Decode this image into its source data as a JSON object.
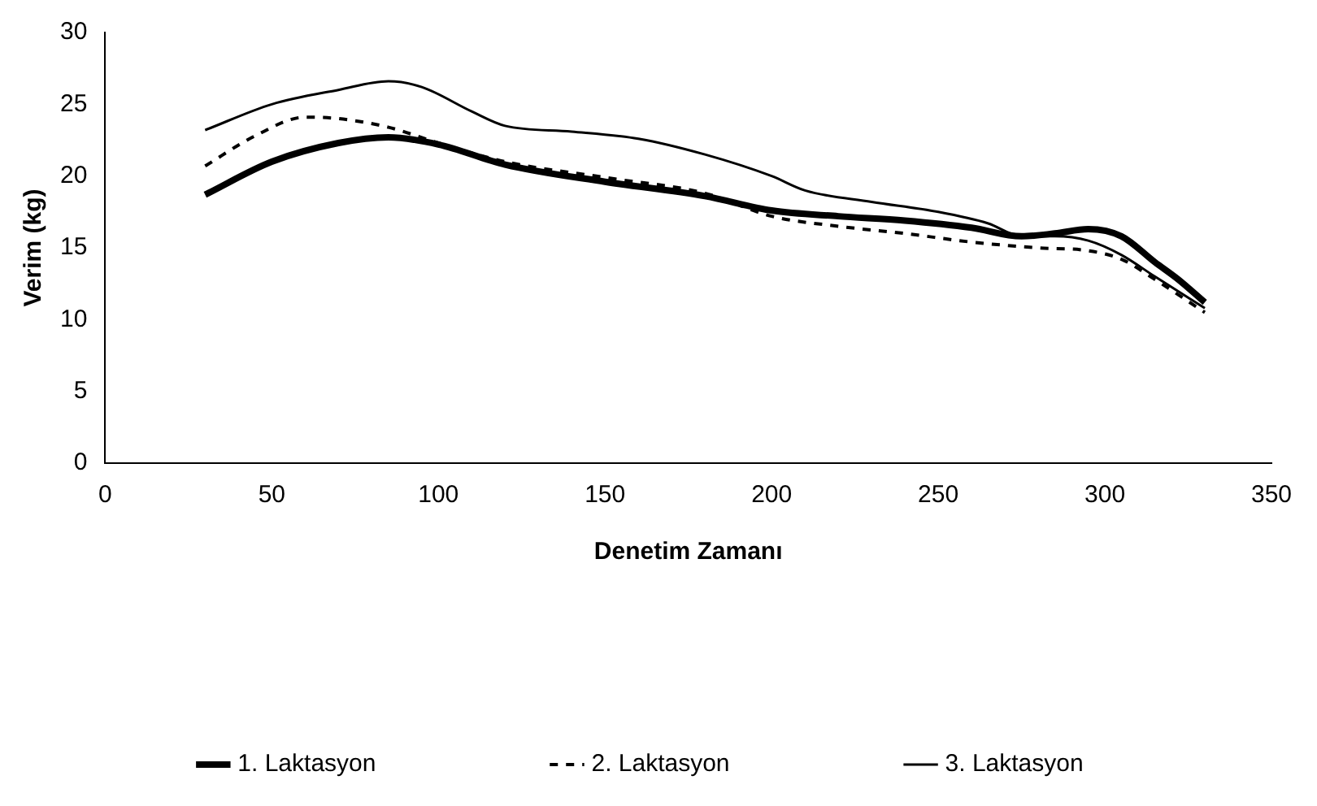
{
  "chart_data": {
    "type": "line",
    "xlabel": "Denetim Zamanı",
    "ylabel": "Verim (kg)",
    "xlim": [
      0,
      350
    ],
    "xticks": [
      0,
      50,
      100,
      150,
      200,
      250,
      300,
      350
    ],
    "ylim": [
      0,
      30
    ],
    "yticks": [
      0,
      5,
      10,
      15,
      20,
      25,
      30
    ],
    "grid": false,
    "legend": "bottom",
    "marker": "none",
    "series": [
      {
        "name": "1. Laktasyon",
        "color": "#000000",
        "line_style": "solid",
        "x": [
          30,
          50,
          70,
          85,
          100,
          120,
          150,
          180,
          200,
          220,
          240,
          260,
          275,
          285,
          295,
          305,
          315,
          322,
          330
        ],
        "values": [
          18.7,
          21,
          22.3,
          22.7,
          22.2,
          20.8,
          19.6,
          18.6,
          17.6,
          17.2,
          16.9,
          16.4,
          15.8,
          16,
          16.3,
          15.8,
          14,
          12.8,
          11.2
        ]
      },
      {
        "name": "2. Laktasyon",
        "color": "#000000",
        "line_style": "dashed",
        "x": [
          30,
          45,
          60,
          70,
          85,
          100,
          120,
          150,
          180,
          200,
          220,
          240,
          260,
          280,
          295,
          305,
          315,
          330
        ],
        "values": [
          20.7,
          22.8,
          24.1,
          24,
          23.4,
          22.3,
          21,
          19.9,
          18.8,
          17.2,
          16.5,
          16,
          15.4,
          15,
          14.8,
          14.2,
          12.8,
          10.5
        ]
      },
      {
        "name": "3. Laktasyon",
        "color": "#000000",
        "line_style": "solid",
        "x": [
          30,
          50,
          70,
          85,
          95,
          110,
          120,
          140,
          160,
          180,
          200,
          210,
          230,
          250,
          265,
          275,
          285,
          295,
          305,
          315,
          330
        ],
        "values": [
          23.2,
          25,
          26,
          26.6,
          26.2,
          24.5,
          23.5,
          23.1,
          22.6,
          21.5,
          20,
          19,
          18.2,
          17.5,
          16.7,
          15.8,
          15.8,
          15.5,
          14.5,
          13,
          10.8
        ]
      }
    ]
  }
}
